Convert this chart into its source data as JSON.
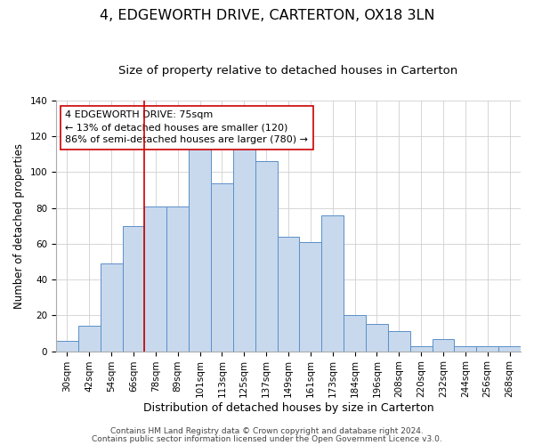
{
  "title": "4, EDGEWORTH DRIVE, CARTERTON, OX18 3LN",
  "subtitle": "Size of property relative to detached houses in Carterton",
  "xlabel": "Distribution of detached houses by size in Carterton",
  "ylabel": "Number of detached properties",
  "bar_labels": [
    "30sqm",
    "42sqm",
    "54sqm",
    "66sqm",
    "78sqm",
    "89sqm",
    "101sqm",
    "113sqm",
    "125sqm",
    "137sqm",
    "149sqm",
    "161sqm",
    "173sqm",
    "184sqm",
    "196sqm",
    "208sqm",
    "220sqm",
    "232sqm",
    "244sqm",
    "256sqm",
    "268sqm"
  ],
  "bar_heights": [
    6,
    14,
    49,
    70,
    81,
    81,
    113,
    94,
    115,
    106,
    64,
    61,
    76,
    20,
    15,
    11,
    3,
    7,
    3,
    3,
    3
  ],
  "bar_color": "#c8d9ed",
  "bar_edge_color": "#5b8fc9",
  "vline_x_idx": 4,
  "vline_color": "#cc0000",
  "ylim": [
    0,
    140
  ],
  "annotation_title": "4 EDGEWORTH DRIVE: 75sqm",
  "annotation_line1": "← 13% of detached houses are smaller (120)",
  "annotation_line2": "86% of semi-detached houses are larger (780) →",
  "annotation_box_color": "#ffffff",
  "annotation_box_edge": "#cc0000",
  "footer1": "Contains HM Land Registry data © Crown copyright and database right 2024.",
  "footer2": "Contains public sector information licensed under the Open Government Licence v3.0.",
  "title_fontsize": 11.5,
  "subtitle_fontsize": 9.5,
  "xlabel_fontsize": 9,
  "ylabel_fontsize": 8.5,
  "tick_fontsize": 7.5,
  "footer_fontsize": 6.5,
  "annot_fontsize": 8
}
